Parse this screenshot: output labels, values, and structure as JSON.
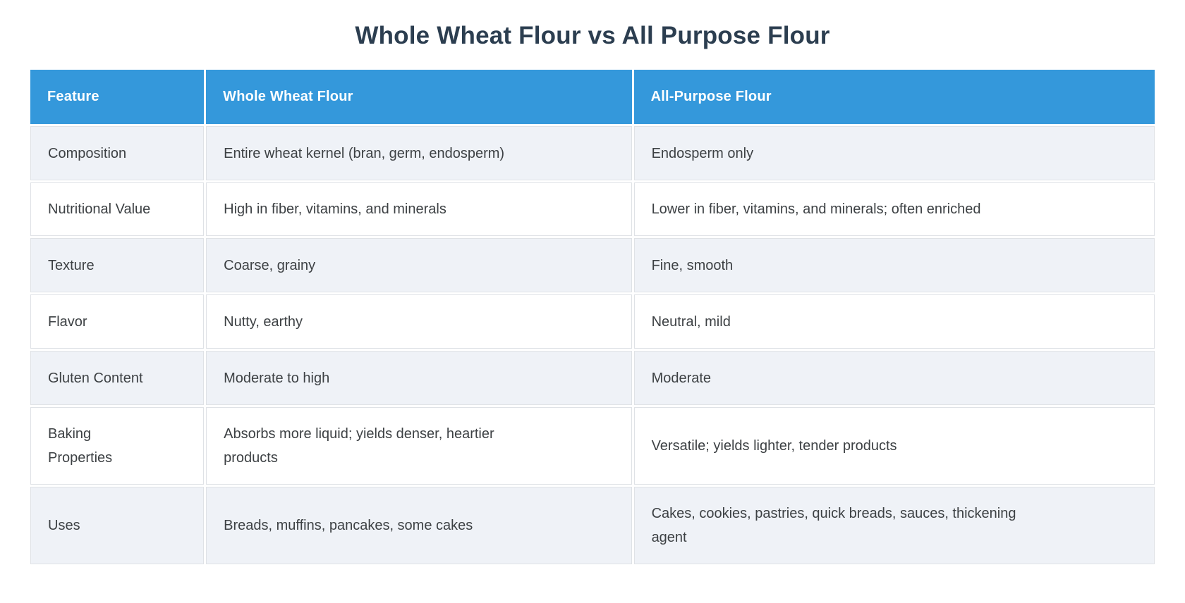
{
  "page": {
    "title": "Whole Wheat Flour vs All Purpose Flour"
  },
  "colors": {
    "header_bg": "#3498db",
    "header_text": "#ffffff",
    "stripe_bg": "#eff2f7",
    "row_bg": "#ffffff",
    "title_text": "#2c3e50",
    "body_text": "#3d4144",
    "border_color": "#dfe2e6",
    "page_bg": "#ffffff"
  },
  "table": {
    "columns": {
      "feature": "Feature",
      "whole_wheat": "Whole Wheat Flour",
      "all_purpose": "All-Purpose Flour"
    },
    "rows": [
      {
        "feature": "Composition",
        "whole_wheat": "Entire wheat kernel (bran, germ, endosperm)",
        "all_purpose": "Endosperm only"
      },
      {
        "feature": "Nutritional Value",
        "whole_wheat": "High in fiber, vitamins, and minerals",
        "all_purpose": "Lower in fiber, vitamins, and minerals; often enriched"
      },
      {
        "feature": "Texture",
        "whole_wheat": "Coarse, grainy",
        "all_purpose": "Fine, smooth"
      },
      {
        "feature": "Flavor",
        "whole_wheat": "Nutty, earthy",
        "all_purpose": "Neutral, mild"
      },
      {
        "feature": "Gluten Content",
        "whole_wheat": "Moderate to high",
        "all_purpose": "Moderate"
      },
      {
        "feature": "Baking Properties",
        "whole_wheat": "Absorbs more liquid; yields denser, heartier products",
        "all_purpose": "Versatile; yields lighter, tender products"
      },
      {
        "feature": "Uses",
        "whole_wheat": "Breads, muffins, pancakes, some cakes",
        "all_purpose": "Cakes, cookies, pastries, quick breads, sauces, thickening agent"
      }
    ]
  }
}
